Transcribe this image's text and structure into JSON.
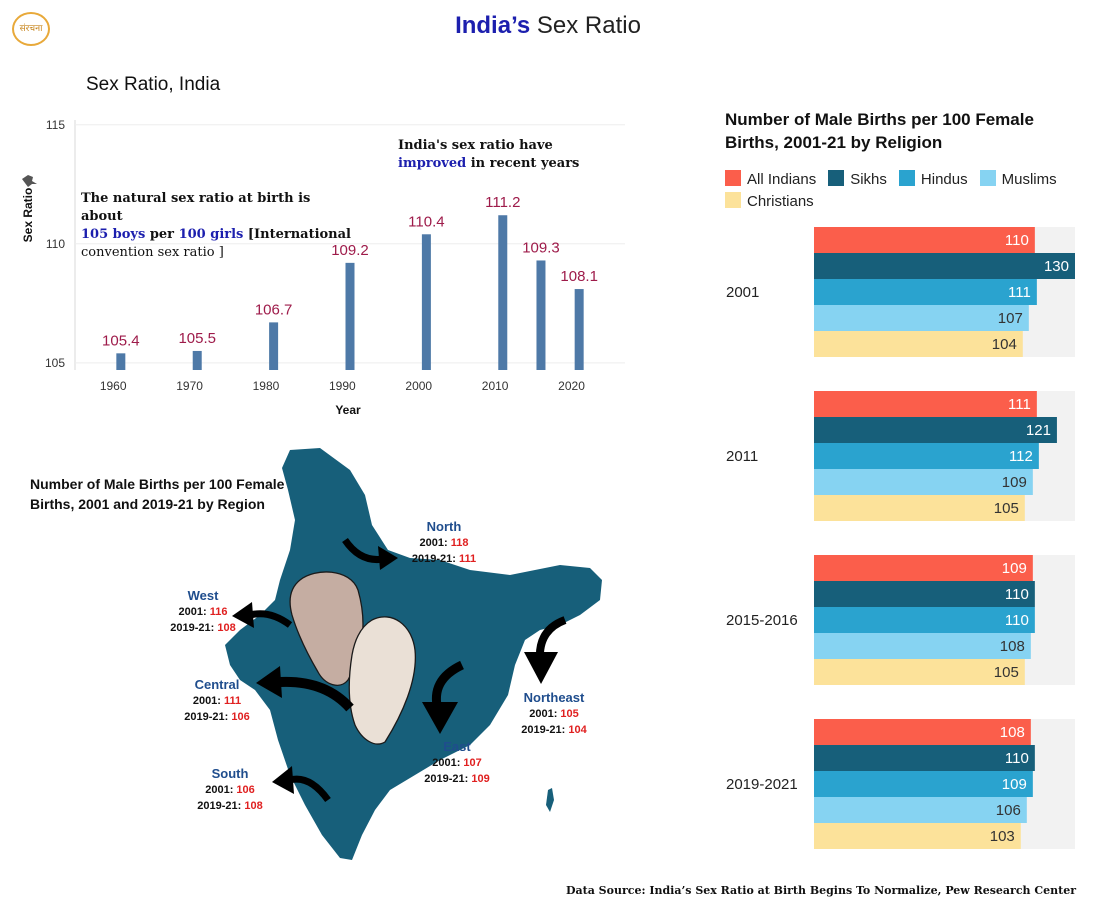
{
  "logo": {
    "text": "संरचना"
  },
  "title": {
    "part_a": "India’s",
    "part_b": " Sex Ratio"
  },
  "bar_chart": {
    "title": "Sex Ratio, India"
  },
  "annotations": {
    "improved": {
      "line1": "India's sex ratio have",
      "highlight": "improved",
      "rest": " in recent years"
    },
    "natural": {
      "line1": "The natural sex ratio at birth is about",
      "boys": "105 boys",
      "per": " per ",
      "girls": "100 girls",
      "bracket": " [International",
      "line3": "convention sex ratio ]"
    }
  },
  "map_section": {
    "title": "Number of Male Births per 100 Female Births, 2001  and 2019-21 by  Region",
    "regions": [
      {
        "name": "North",
        "label_2001": "2001: ",
        "v2001": "118",
        "label_2019": "2019-21: ",
        "v2019": "111"
      },
      {
        "name": "West",
        "label_2001": "2001: ",
        "v2001": "116",
        "label_2019": "2019-21: ",
        "v2019": "108"
      },
      {
        "name": "Central",
        "label_2001": "2001: ",
        "v2001": "111",
        "label_2019": "2019-21: ",
        "v2019": "106"
      },
      {
        "name": "Northeast",
        "label_2001": "2001: ",
        "v2001": "105",
        "label_2019": "2019-21: ",
        "v2019": "104"
      },
      {
        "name": "East",
        "label_2001": "2001: ",
        "v2001": "107",
        "label_2019": "2019-21: ",
        "v2019": "109"
      },
      {
        "name": "South",
        "label_2001": "2001: ",
        "v2001": "106",
        "label_2019": "2019-21: ",
        "v2019": "108"
      }
    ]
  },
  "religion_chart": {
    "title": "Number of Male Births per 100 Female Births, 2001-21 by Religion"
  },
  "source": "Data Source: India’s Sex Ratio at Birth Begins To Normalize, Pew Research Center",
  "chart_data": [
    {
      "type": "bar",
      "title": "Sex Ratio, India",
      "xlabel": "Year",
      "ylabel": "Sex Ratio",
      "x": [
        1961,
        1971,
        1981,
        1991,
        2001,
        2011,
        2016,
        2021
      ],
      "values": [
        105.4,
        105.5,
        106.7,
        109.2,
        110.4,
        111.2,
        109.3,
        108.1
      ],
      "xticks": [
        1960,
        1970,
        1980,
        1990,
        2000,
        2010,
        2020
      ],
      "yticks": [
        105,
        110,
        115
      ],
      "ylim": [
        104.7,
        115.2
      ],
      "xlim": [
        1955,
        2027
      ],
      "bar_color": "#4e79a7",
      "label_color": "#9e1b4a",
      "grid": true
    },
    {
      "type": "bar",
      "orientation": "horizontal",
      "title": "Number of Male Births per 100 Female Births, 2001-21 by Religion",
      "legend_position": "top",
      "groups": [
        "2001",
        "2011",
        "2015-2016",
        "2019-2021"
      ],
      "series": [
        {
          "name": "All Indians",
          "color": "#fb5e4b",
          "values": [
            110,
            111,
            109,
            108
          ]
        },
        {
          "name": "Sikhs",
          "color": "#175f7a",
          "values": [
            130,
            121,
            110,
            110
          ]
        },
        {
          "name": "Hindus",
          "color": "#2aa3cf",
          "values": [
            111,
            112,
            110,
            109
          ]
        },
        {
          "name": "Muslims",
          "color": "#86d3f2",
          "values": [
            107,
            109,
            108,
            106
          ]
        },
        {
          "name": "Christians",
          "color": "#fce29a",
          "values": [
            104,
            105,
            105,
            103
          ]
        }
      ],
      "xlim": [
        0,
        130
      ],
      "background_color": "#f2f2f2"
    }
  ]
}
